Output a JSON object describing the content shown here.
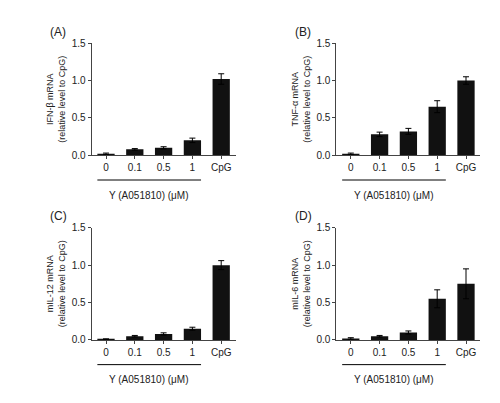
{
  "chart_data": [
    {
      "type": "bar",
      "title": "(A)",
      "ylabel": "IFN-β mRNA\n(relative level to CpG)",
      "xlabel": "Y (A051810) (μM)",
      "categories": [
        "0",
        "0.1",
        "0.5",
        "1",
        "CpG"
      ],
      "values": [
        0.02,
        0.08,
        0.1,
        0.2,
        1.02
      ],
      "errors": [
        0.01,
        0.01,
        0.015,
        0.03,
        0.07
      ],
      "color": "#111111",
      "ylim": [
        0,
        1.5
      ],
      "yticks": [
        {
          "value": 0,
          "label": "0.0"
        },
        0.5,
        {
          "value": 1.0,
          "label": "1.0"
        },
        1.5
      ],
      "grid": false
    },
    {
      "type": "bar",
      "title": "(B)",
      "ylabel": "TNF-α mRNA\n(relative level to CpG)",
      "xlabel": "Y (A051810) (μM)",
      "categories": [
        "0",
        "0.1",
        "0.5",
        "1",
        "CpG"
      ],
      "values": [
        0.02,
        0.28,
        0.32,
        0.65,
        1.0
      ],
      "errors": [
        0.01,
        0.03,
        0.04,
        0.08,
        0.05
      ],
      "color": "#111111",
      "ylim": [
        0,
        1.5
      ],
      "yticks": [
        {
          "value": 0,
          "label": "0.0"
        },
        0.5,
        {
          "value": 1.0,
          "label": "1.0"
        },
        1.5
      ],
      "grid": false
    },
    {
      "type": "bar",
      "title": "(C)",
      "ylabel": "mIL-12 mRNA\n(relative level to CpG)",
      "xlabel": "Y (A051810) (μM)",
      "categories": [
        "0",
        "0.1",
        "0.5",
        "1",
        "CpG"
      ],
      "values": [
        0.01,
        0.05,
        0.08,
        0.15,
        1.0
      ],
      "errors": [
        0.005,
        0.01,
        0.015,
        0.02,
        0.06
      ],
      "color": "#111111",
      "ylim": [
        0,
        1.5
      ],
      "yticks": [
        {
          "value": 0,
          "label": "0.0"
        },
        0.5,
        {
          "value": 1.0,
          "label": "1.0"
        },
        1.5
      ],
      "grid": false
    },
    {
      "type": "bar",
      "title": "(D)",
      "ylabel": "mIL-6 mRNA\n(relative level to CpG)",
      "xlabel": "Y (A051810) (μM)",
      "categories": [
        "0",
        "0.1",
        "0.5",
        "1",
        "CpG"
      ],
      "values": [
        0.02,
        0.05,
        0.1,
        0.55,
        0.75
      ],
      "errors": [
        0.01,
        0.01,
        0.02,
        0.12,
        0.2
      ],
      "color": "#111111",
      "ylim": [
        0,
        1.5
      ],
      "yticks": [
        {
          "value": 0,
          "label": "0.0"
        },
        0.5,
        {
          "value": 1.0,
          "label": "1.0"
        },
        1.5
      ],
      "grid": false
    }
  ]
}
